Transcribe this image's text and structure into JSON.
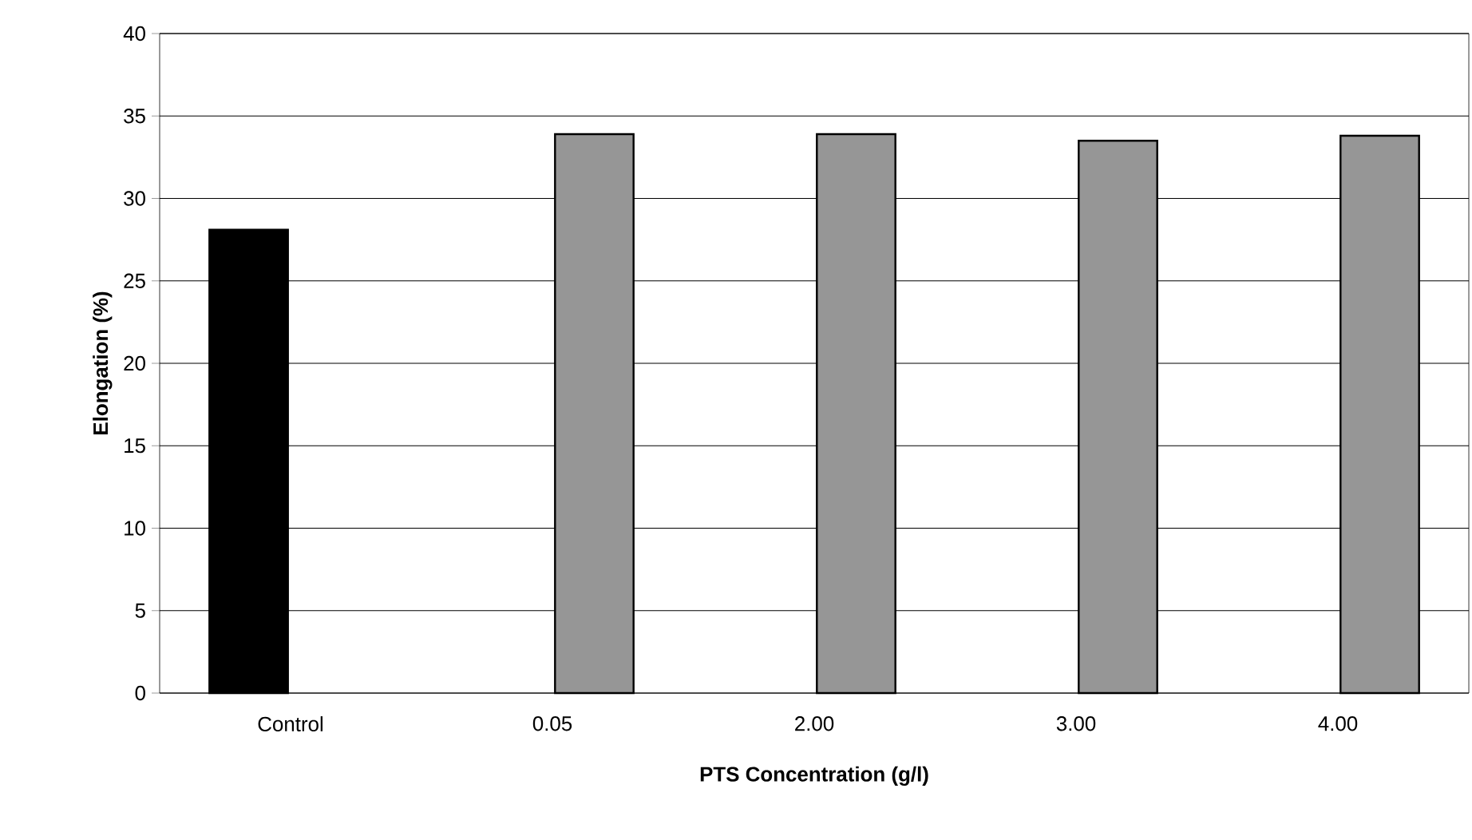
{
  "chart_data": {
    "type": "bar",
    "xlabel": "PTS Concentration (g/l)",
    "ylabel": "Elongation (%)",
    "categories": [
      "Control",
      "0.05",
      "2.00",
      "3.00",
      "4.00"
    ],
    "series": [
      {
        "color": "#000000",
        "values": [
          28.1,
          null,
          null,
          null,
          null
        ]
      },
      {
        "color": "#969696",
        "values": [
          null,
          33.9,
          33.9,
          33.5,
          33.8
        ]
      }
    ],
    "ylim": [
      0,
      40
    ],
    "yticks": [
      0,
      5,
      10,
      15,
      20,
      25,
      30,
      35,
      40
    ],
    "grid": "y"
  }
}
